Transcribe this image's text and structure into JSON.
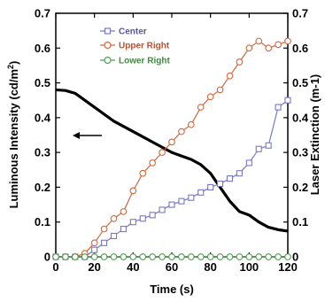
{
  "chart_data": {
    "type": "line",
    "xlabel": "Time (s)",
    "ylabel_left": "Luminous Intensity (cd/m",
    "ylabel_left_sup": "2",
    "ylabel_left_close": ")",
    "ylabel_right": "Laser Extinction (m-1)",
    "xlim": [
      0,
      120
    ],
    "ylim_left": [
      0,
      0.7
    ],
    "ylim_right": [
      0,
      0.7
    ],
    "x_ticks": [
      "0",
      "20",
      "40",
      "60",
      "80",
      "100",
      "120"
    ],
    "y_ticks_left": [
      "0",
      "0.1",
      "0.2",
      "0.3",
      "0.4",
      "0.5",
      "0.6",
      "0.7"
    ],
    "y_ticks_right": [
      "0",
      "0.1",
      "0.2",
      "0.3",
      "0.4",
      "0.5",
      "0.6",
      "0.7"
    ],
    "legend_position": "top-center",
    "luminous_intensity": {
      "color": "#000000",
      "axis": "left",
      "x": [
        0,
        5,
        10,
        15,
        20,
        25,
        30,
        35,
        40,
        45,
        50,
        55,
        60,
        65,
        70,
        75,
        80,
        85,
        90,
        95,
        100,
        105,
        110,
        115,
        120
      ],
      "y": [
        0.48,
        0.478,
        0.47,
        0.45,
        0.43,
        0.41,
        0.39,
        0.375,
        0.36,
        0.345,
        0.33,
        0.315,
        0.3,
        0.29,
        0.28,
        0.265,
        0.24,
        0.2,
        0.16,
        0.13,
        0.12,
        0.1,
        0.085,
        0.078,
        0.074
      ]
    },
    "arrow_annotation": {
      "direction": "left",
      "target_axis": "left"
    },
    "series": [
      {
        "name": "Center",
        "color": "#7777cc",
        "marker": "square",
        "axis": "right",
        "x": [
          0,
          5,
          10,
          15,
          20,
          25,
          30,
          35,
          40,
          45,
          50,
          55,
          60,
          65,
          70,
          75,
          80,
          85,
          90,
          95,
          100,
          105,
          110,
          115,
          120
        ],
        "y": [
          0,
          0,
          0,
          0,
          0.02,
          0.04,
          0.06,
          0.08,
          0.1,
          0.11,
          0.12,
          0.135,
          0.15,
          0.16,
          0.17,
          0.185,
          0.2,
          0.21,
          0.225,
          0.24,
          0.27,
          0.31,
          0.32,
          0.43,
          0.45
        ]
      },
      {
        "name": "Upper Right",
        "color": "#d4663a",
        "marker": "circle",
        "axis": "right",
        "x": [
          0,
          5,
          10,
          15,
          20,
          25,
          30,
          35,
          40,
          45,
          50,
          55,
          60,
          65,
          70,
          75,
          80,
          85,
          90,
          95,
          100,
          105,
          110,
          115,
          120
        ],
        "y": [
          0,
          0,
          0,
          0.01,
          0.04,
          0.08,
          0.11,
          0.13,
          0.19,
          0.24,
          0.27,
          0.3,
          0.33,
          0.36,
          0.38,
          0.43,
          0.46,
          0.48,
          0.52,
          0.56,
          0.6,
          0.62,
          0.6,
          0.61,
          0.62
        ]
      },
      {
        "name": "Lower Right",
        "color": "#4f9e4f",
        "marker": "circle",
        "axis": "right",
        "x": [
          0,
          5,
          10,
          15,
          20,
          25,
          30,
          35,
          40,
          45,
          50,
          55,
          60,
          65,
          70,
          75,
          80,
          85,
          90,
          95,
          100,
          105,
          110,
          115,
          120
        ],
        "y": [
          0,
          0,
          0,
          0,
          0,
          0,
          0,
          0,
          0,
          0,
          0,
          0,
          0,
          0,
          0,
          0,
          0,
          0,
          0,
          0,
          0,
          0,
          0,
          0,
          0
        ]
      }
    ]
  }
}
